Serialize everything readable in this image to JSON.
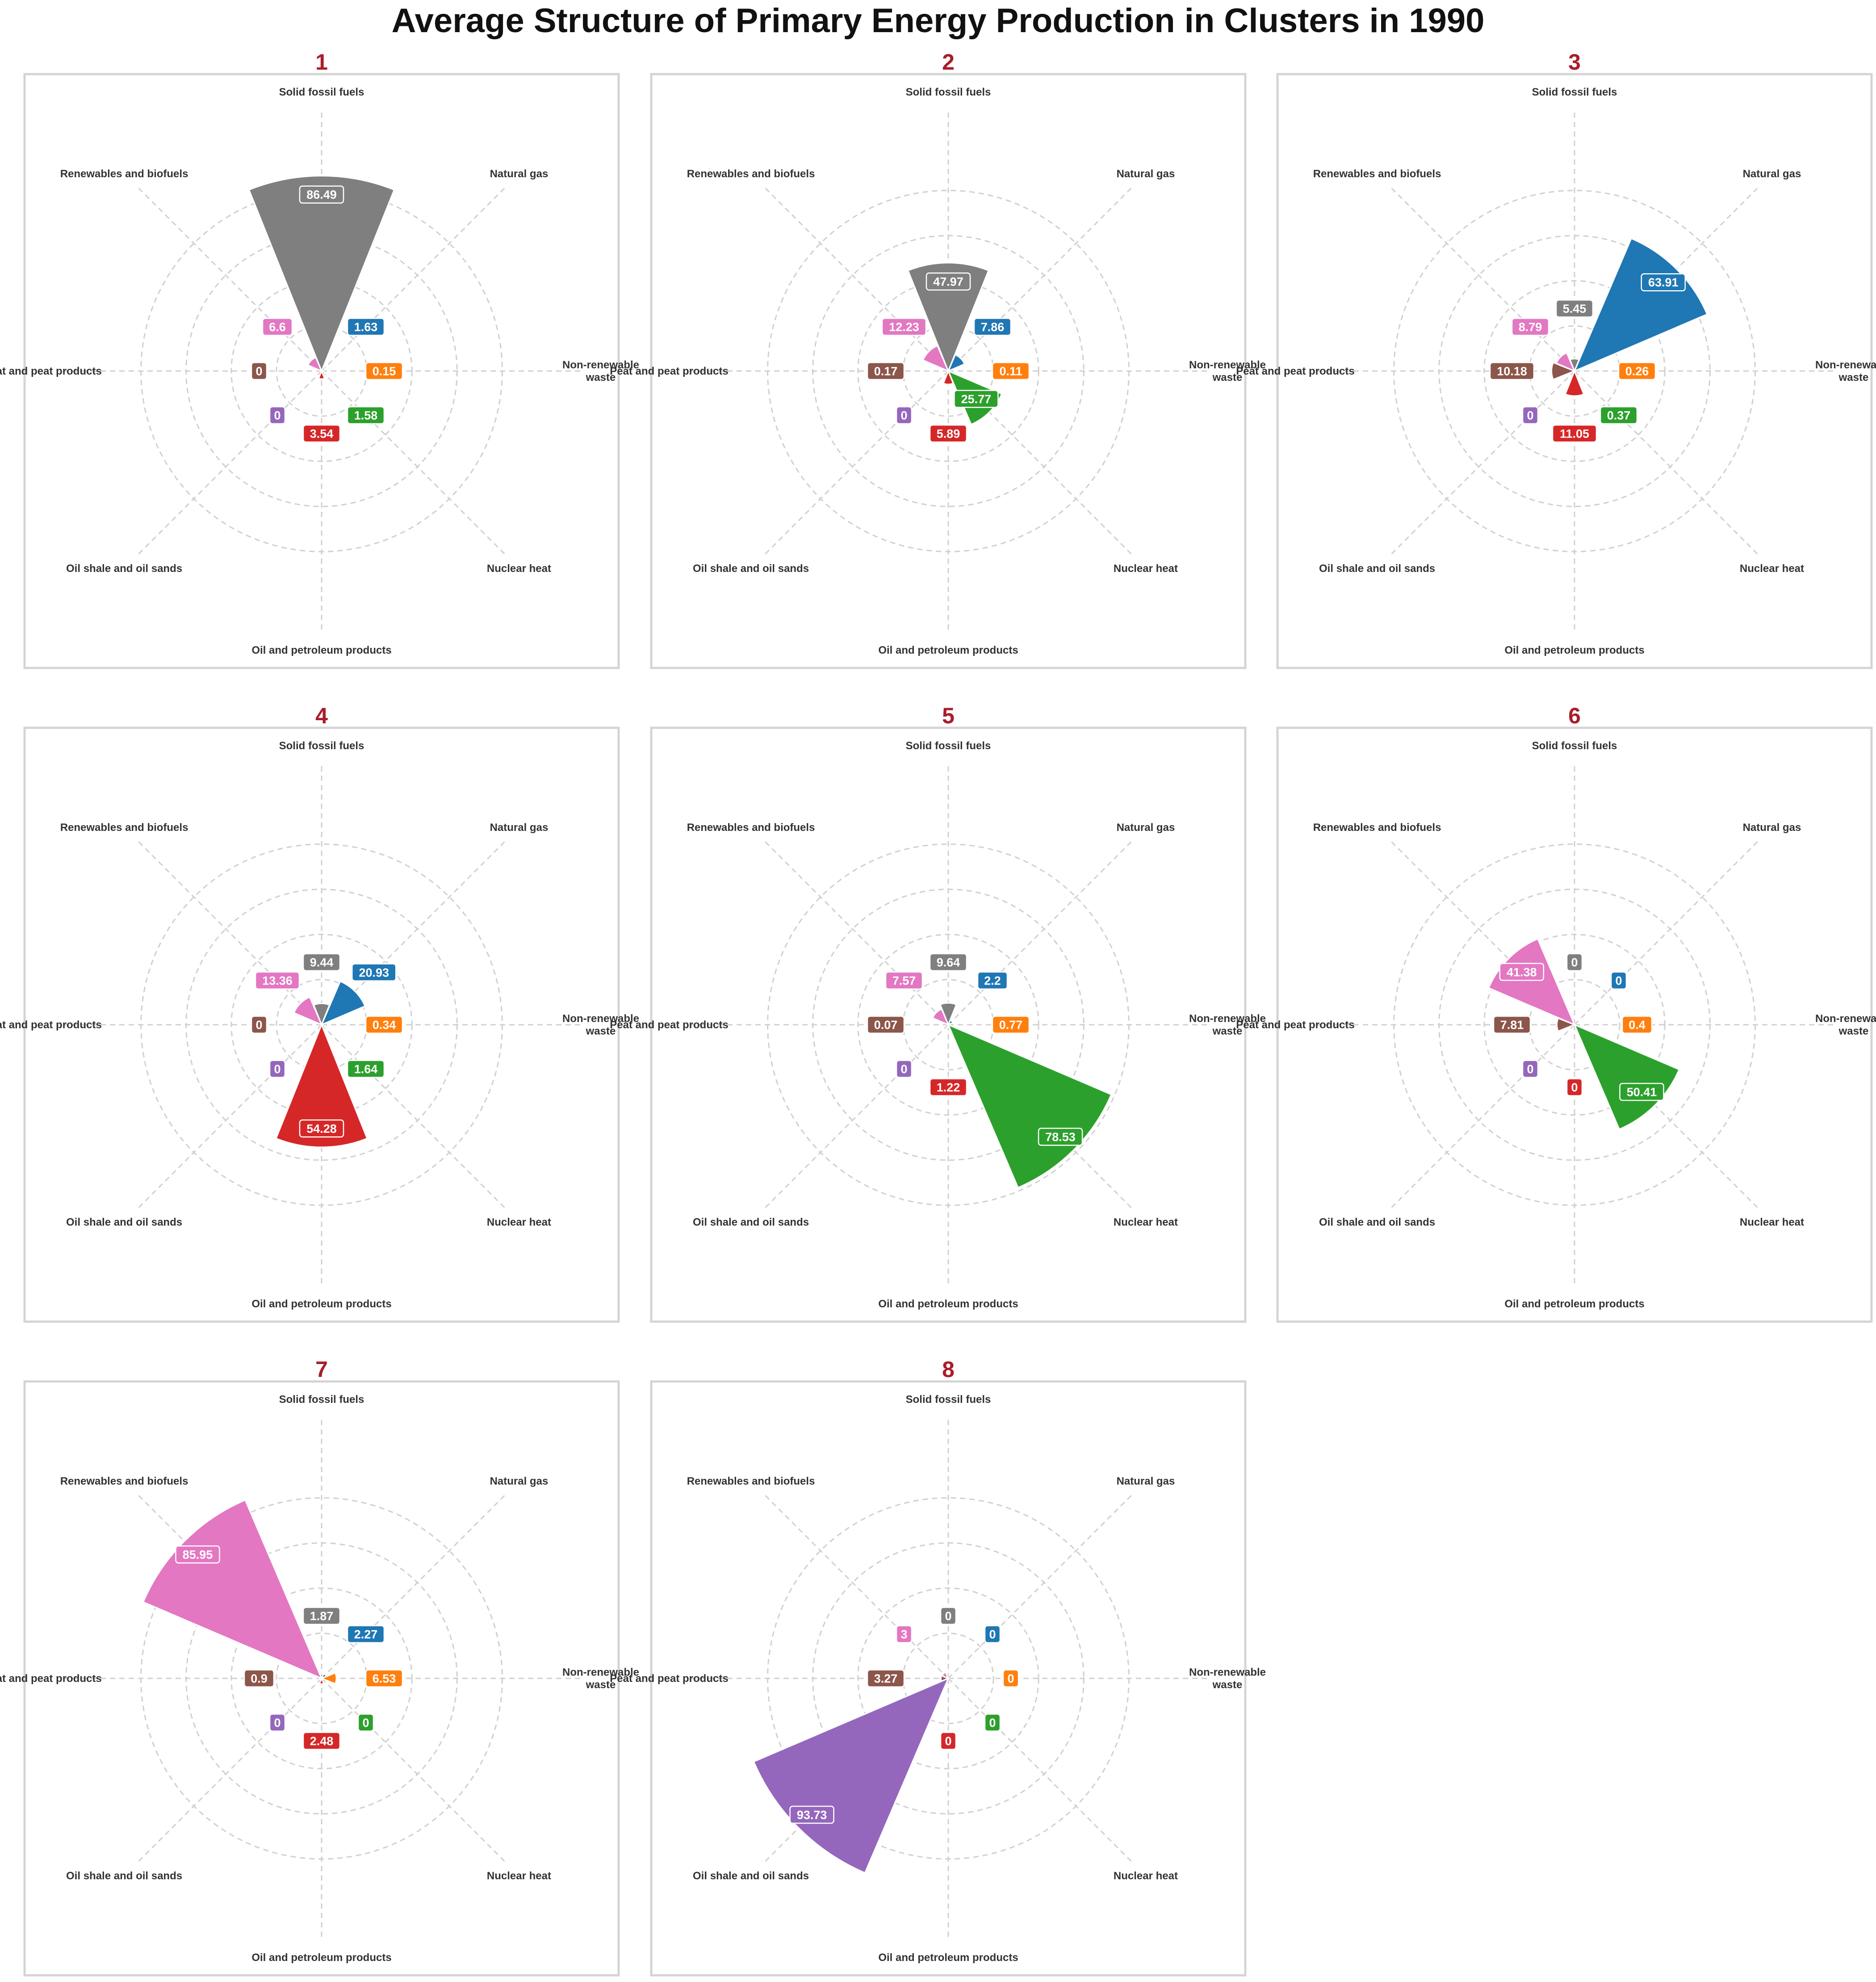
{
  "title": "Average Structure of Primary Energy Production in Clusters in 1990",
  "colors": {
    "panel_title": "#a91d2a",
    "grid": "#d0d0d0",
    "frame": "#d4d4d4"
  },
  "chart_data": {
    "type": "polar-bar",
    "title": "Average Structure of Primary Energy Production in Clusters in 1990",
    "categories": [
      "Solid fossil fuels",
      "Natural gas",
      "Non-renewable\nwaste",
      "Nuclear heat",
      "Oil and petroleum products",
      "Oil shale and oil sands",
      "Peat and peat products",
      "Renewables and biofuels"
    ],
    "radial_max": 90,
    "grid_rings": [
      20,
      40,
      60,
      80
    ],
    "grid": true,
    "series": [
      {
        "key": "Solid fossil fuels",
        "color": "#7f7f7f"
      },
      {
        "key": "Natural gas",
        "color": "#1f77b4"
      },
      {
        "key": "Non-renewable waste",
        "color": "#ff7f0e"
      },
      {
        "key": "Nuclear heat",
        "color": "#2ca02c"
      },
      {
        "key": "Oil and petroleum products",
        "color": "#d62728"
      },
      {
        "key": "Oil shale and oil sands",
        "color": "#9467bd"
      },
      {
        "key": "Peat and peat products",
        "color": "#8c564b"
      },
      {
        "key": "Renewables and biofuels",
        "color": "#e377c2"
      }
    ],
    "panels": [
      {
        "title": "1",
        "values": [
          86.49,
          1.63,
          0.15,
          1.58,
          3.54,
          0,
          0,
          6.6
        ],
        "labels": [
          "86.49",
          "1.63",
          "0.15",
          "1.58",
          "3.54",
          "0",
          "0",
          "6.6"
        ]
      },
      {
        "title": "2",
        "values": [
          47.97,
          7.86,
          0.11,
          25.77,
          5.89,
          0,
          0.17,
          12.23
        ],
        "labels": [
          "47.97",
          "7.86",
          "0.11",
          "25.77",
          "5.89",
          "0",
          "0.17",
          "12.23"
        ]
      },
      {
        "title": "3",
        "values": [
          5.45,
          63.91,
          0.26,
          0.37,
          11.05,
          0,
          10.18,
          8.79
        ],
        "labels": [
          "5.45",
          "63.91",
          "0.26",
          "0.37",
          "11.05",
          "0",
          "10.18",
          "8.79"
        ]
      },
      {
        "title": "4",
        "values": [
          9.44,
          20.93,
          0.34,
          1.64,
          54.28,
          0,
          0,
          13.36
        ],
        "labels": [
          "9.44",
          "20.93",
          "0.34",
          "1.64",
          "54.28",
          "0",
          "0",
          "13.36"
        ]
      },
      {
        "title": "5",
        "values": [
          9.64,
          2.2,
          0.77,
          78.53,
          1.22,
          0,
          0.07,
          7.57
        ],
        "labels": [
          "9.64",
          "2.2",
          "0.77",
          "78.53",
          "1.22",
          "0",
          "0.07",
          "7.57"
        ]
      },
      {
        "title": "6",
        "values": [
          0,
          0,
          0.4,
          50.41,
          0,
          0,
          7.81,
          41.38
        ],
        "labels": [
          "0",
          "0",
          "0.4",
          "50.41",
          "0",
          "0",
          "7.81",
          "41.38"
        ]
      },
      {
        "title": "7",
        "values": [
          1.87,
          2.27,
          6.53,
          0,
          2.48,
          0,
          0.9,
          85.95
        ],
        "labels": [
          "1.87",
          "2.27",
          "6.53",
          "0",
          "2.48",
          "0",
          "0.9",
          "85.95"
        ]
      },
      {
        "title": "8",
        "values": [
          0,
          0,
          0,
          0,
          0,
          93.73,
          3.27,
          3
        ],
        "labels": [
          "0",
          "0",
          "0",
          "0",
          "0",
          "93.73",
          "3.27",
          "3"
        ]
      }
    ]
  }
}
